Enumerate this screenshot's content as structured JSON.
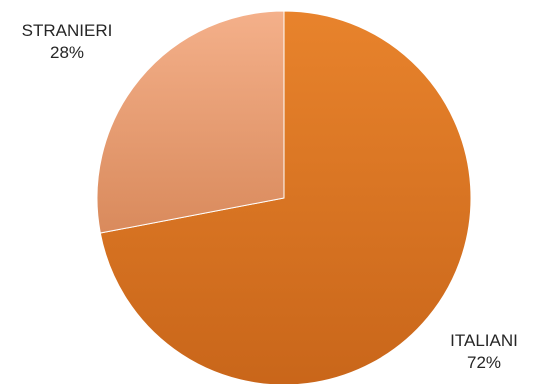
{
  "chart_data": {
    "type": "pie",
    "slices": [
      {
        "label": "ITALIANI",
        "value": 72,
        "value_label": "72%",
        "color": "#e07a24",
        "color_dark": "#c9661a"
      },
      {
        "label": "STRANIERI",
        "value": 28,
        "value_label": "28%",
        "color": "#f2a77a",
        "color_dark": "#d98a5c"
      }
    ]
  }
}
